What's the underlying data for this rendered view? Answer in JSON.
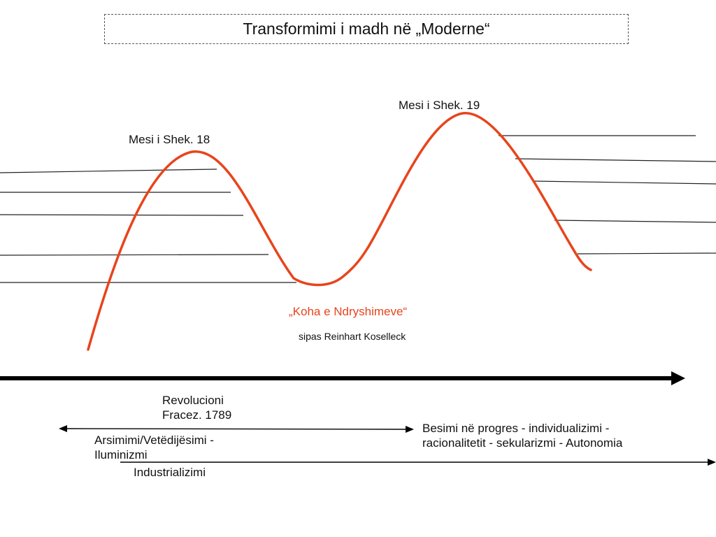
{
  "title": "Transformimi i madh në „Moderne“",
  "peaks": {
    "left": "Mesi i Shek. 18",
    "right": "Mesi i Shek. 19"
  },
  "center": {
    "title": "„Koha e Ndryshimeve“",
    "subtitle": "sipas Reinhart Koselleck"
  },
  "timeline": {
    "revolution_line1": "Revolucioni",
    "revolution_line2": "Fracez. 1789",
    "enlightenment_line1": "Arsimimi/Vetëdijësimi -",
    "enlightenment_line2": "Iluminizmi",
    "industrialization": "Industrializimi",
    "progress_line1": "Besimi në progres - individualizimi -",
    "progress_line2": "racionalitetit - sekularizmi - Autonomia"
  },
  "colors": {
    "curve": "#e8441c",
    "lines": "#222222",
    "arrow": "#000000"
  }
}
